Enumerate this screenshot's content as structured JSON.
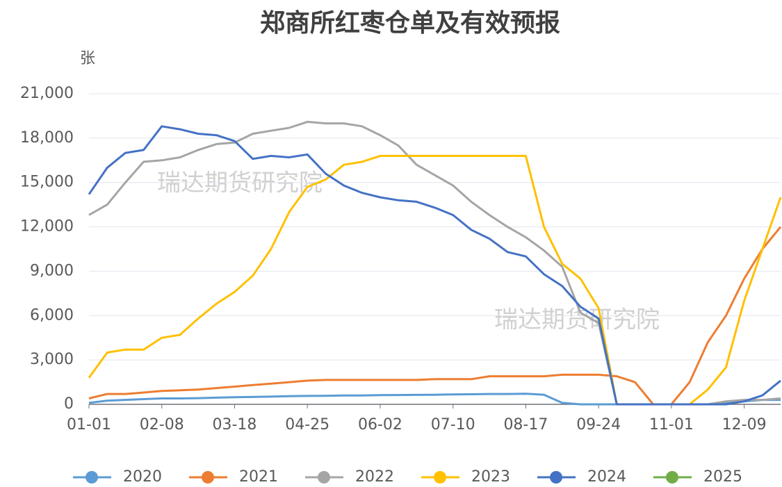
{
  "chart_data": {
    "type": "line",
    "title": "郑商所红枣仓单及有效预报",
    "y_label": "张",
    "watermarks": [
      "瑞达期货研究院",
      "瑞达期货研究院"
    ],
    "categories": [
      "01-01",
      null,
      null,
      null,
      "02-08",
      null,
      null,
      null,
      "03-18",
      null,
      null,
      null,
      "04-25",
      null,
      null,
      null,
      "06-02",
      null,
      null,
      null,
      "07-10",
      null,
      null,
      null,
      "08-17",
      null,
      null,
      null,
      "09-24",
      null,
      null,
      null,
      "11-01",
      null,
      null,
      null,
      "12-09",
      null,
      null
    ],
    "ylim": [
      0,
      21000
    ],
    "yticks": [
      {
        "value": 0,
        "label": "0"
      },
      {
        "value": 3000,
        "label": "3,000"
      },
      {
        "value": 6000,
        "label": "6,000"
      },
      {
        "value": 9000,
        "label": "9,000"
      },
      {
        "value": 12000,
        "label": "12,000"
      },
      {
        "value": 15000,
        "label": "15,000"
      },
      {
        "value": 18000,
        "label": "18,000"
      },
      {
        "value": 21000,
        "label": "21,000"
      }
    ],
    "grid": true,
    "legend": "bottom",
    "series": [
      {
        "name": "2020",
        "color": "#5b9bd5",
        "values": [
          100,
          250,
          300,
          350,
          400,
          400,
          420,
          450,
          480,
          500,
          520,
          550,
          570,
          580,
          600,
          600,
          620,
          630,
          640,
          650,
          670,
          680,
          700,
          700,
          720,
          650,
          100,
          0,
          0,
          0,
          0,
          0,
          0,
          0,
          0,
          100,
          200,
          300,
          300
        ]
      },
      {
        "name": "2021",
        "color": "#ed7d31",
        "values": [
          400,
          700,
          700,
          800,
          900,
          950,
          1000,
          1100,
          1200,
          1300,
          1400,
          1500,
          1600,
          1650,
          1650,
          1650,
          1650,
          1650,
          1650,
          1700,
          1700,
          1700,
          1900,
          1900,
          1900,
          1900,
          2000,
          2000,
          2000,
          1900,
          1500,
          0,
          0,
          1500,
          4200,
          6000,
          8500,
          10500,
          12000
        ]
      },
      {
        "name": "2022",
        "color": "#a5a5a5",
        "values": [
          12800,
          13500,
          15000,
          16400,
          16500,
          16700,
          17200,
          17600,
          17700,
          18300,
          18500,
          18700,
          19100,
          19000,
          19000,
          18800,
          18200,
          17500,
          16200,
          15500,
          14800,
          13700,
          12800,
          12000,
          11300,
          10400,
          9300,
          6200,
          5500,
          0,
          0,
          0,
          0,
          0,
          0,
          200,
          300,
          300,
          400
        ]
      },
      {
        "name": "2023",
        "color": "#ffc000",
        "values": [
          1800,
          3500,
          3700,
          3700,
          4500,
          4700,
          5800,
          6800,
          7600,
          8700,
          10500,
          13000,
          14700,
          15200,
          16200,
          16400,
          16800,
          16800,
          16800,
          16800,
          16800,
          16800,
          16800,
          16800,
          16800,
          12000,
          9500,
          8500,
          6500,
          0,
          0,
          0,
          0,
          0,
          1000,
          2500,
          7000,
          10500,
          14000
        ]
      },
      {
        "name": "2024",
        "color": "#4472c4",
        "values": [
          14200,
          16000,
          17000,
          17200,
          18800,
          18600,
          18300,
          18200,
          17800,
          16600,
          16800,
          16700,
          16900,
          15600,
          14800,
          14300,
          14000,
          13800,
          13700,
          13300,
          12800,
          11800,
          11200,
          10300,
          10000,
          8800,
          8000,
          6600,
          5800,
          0,
          0,
          0,
          0,
          0,
          0,
          0,
          200,
          600,
          1600
        ]
      },
      {
        "name": "2025",
        "color": "#70ad47",
        "values": [
          null,
          null,
          null,
          null,
          null,
          null,
          null,
          null,
          null,
          null,
          null,
          null,
          null,
          null,
          null,
          null,
          null,
          null,
          null,
          null,
          null,
          null,
          null,
          null,
          null,
          null,
          null,
          null,
          null,
          null,
          null,
          null,
          null,
          null,
          null,
          null,
          null,
          null,
          null
        ]
      }
    ]
  }
}
